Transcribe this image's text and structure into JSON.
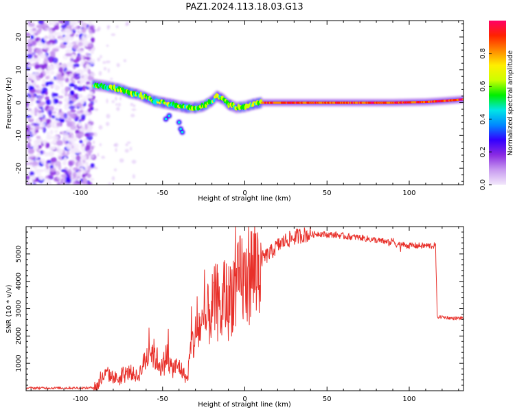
{
  "title": "PAZ1.2024.113.18.03.G13",
  "chart_data": [
    {
      "type": "heatmap",
      "xlabel": "Height of straight line (km)",
      "ylabel": "Frequency (Hz)",
      "xlim": [
        -133,
        133
      ],
      "ylim": [
        -25,
        25
      ],
      "x_ticks": [
        -100,
        -50,
        0,
        50,
        100
      ],
      "y_ticks": [
        20,
        10,
        0,
        -10,
        -20
      ],
      "colorbar": {
        "label": "Normalized spectral amplitude",
        "range": [
          0,
          1
        ],
        "ticks": [
          "0.0",
          "0.2",
          "0.4",
          "0.6",
          "0.8"
        ],
        "colors": [
          "#f2e8fb",
          "#c89af0",
          "#8a2be2",
          "#3300ff",
          "#0088ff",
          "#00e6e6",
          "#00ee00",
          "#ccff00",
          "#ffee00",
          "#ff8800",
          "#ff2200",
          "#ff0066"
        ]
      },
      "ridge": [
        {
          "x": -92,
          "f": 5.5
        },
        {
          "x": -85,
          "f": 5.0
        },
        {
          "x": -80,
          "f": 4.5
        },
        {
          "x": -75,
          "f": 4.0
        },
        {
          "x": -70,
          "f": 3.0
        },
        {
          "x": -65,
          "f": 2.5
        },
        {
          "x": -60,
          "f": 1.5
        },
        {
          "x": -55,
          "f": 0.5
        },
        {
          "x": -50,
          "f": 0.0
        },
        {
          "x": -45,
          "f": -0.5
        },
        {
          "x": -40,
          "f": -1.0
        },
        {
          "x": -35,
          "f": -1.5
        },
        {
          "x": -30,
          "f": -1.5
        },
        {
          "x": -25,
          "f": -1.0
        },
        {
          "x": -20,
          "f": 0.5
        },
        {
          "x": -17,
          "f": 2.0
        },
        {
          "x": -13,
          "f": 1.0
        },
        {
          "x": -10,
          "f": -0.5
        },
        {
          "x": -5,
          "f": -1.5
        },
        {
          "x": 0,
          "f": -1.2
        },
        {
          "x": 5,
          "f": -0.5
        },
        {
          "x": 10,
          "f": 0.0
        },
        {
          "x": 30,
          "f": 0.0
        },
        {
          "x": 50,
          "f": 0.0
        },
        {
          "x": 70,
          "f": 0.0
        },
        {
          "x": 90,
          "f": 0.0
        },
        {
          "x": 110,
          "f": 0.2
        },
        {
          "x": 120,
          "f": 0.5
        },
        {
          "x": 133,
          "f": 1.0
        }
      ],
      "noise_region_x": [
        -133,
        -92
      ],
      "offshoot_points": [
        {
          "x": -48,
          "f": -5
        },
        {
          "x": -46,
          "f": -4
        },
        {
          "x": -40,
          "f": -6
        },
        {
          "x": -39,
          "f": -8
        },
        {
          "x": -38,
          "f": -9
        }
      ]
    },
    {
      "type": "line",
      "xlabel": "Height of straight line (km)",
      "ylabel": "SNR (10 * v/v)",
      "xlim": [
        -133,
        133
      ],
      "ylim": [
        0,
        6000
      ],
      "x_ticks": [
        -100,
        -50,
        0,
        50,
        100
      ],
      "y_ticks": [
        1000,
        2000,
        3000,
        4000,
        5000
      ],
      "color": "#e8302a",
      "series": [
        {
          "x": [
            -133,
            -120,
            -110,
            -100,
            -95,
            -90,
            -85,
            -80,
            -75,
            -70,
            -65,
            -60,
            -57,
            -55,
            -50,
            -47,
            -45,
            -40,
            -37,
            -35,
            -33,
            -30,
            -27,
            -25,
            -22,
            -20,
            -17,
            -15,
            -12,
            -10,
            -7,
            -5,
            -2,
            0,
            3,
            5,
            8,
            10,
            15,
            20,
            25,
            30,
            35,
            40,
            45,
            50,
            55,
            60,
            70,
            80,
            85,
            88,
            90,
            92,
            95,
            100,
            110,
            116,
            117,
            118,
            120,
            125,
            133
          ],
          "y": [
            100,
            100,
            100,
            100,
            100,
            150,
            600,
            500,
            400,
            700,
            500,
            1200,
            1500,
            1300,
            800,
            1400,
            800,
            900,
            600,
            400,
            1500,
            2000,
            2400,
            2200,
            2800,
            3000,
            3300,
            2700,
            3500,
            3200,
            3800,
            3600,
            4200,
            3900,
            4400,
            4300,
            4600,
            4800,
            5000,
            5300,
            5500,
            5600,
            5700,
            5700,
            5750,
            5700,
            5700,
            5650,
            5600,
            5500,
            5450,
            5400,
            5500,
            5350,
            5350,
            5300,
            5300,
            5300,
            2700,
            2700,
            2700,
            2650,
            2650
          ]
        }
      ]
    }
  ]
}
